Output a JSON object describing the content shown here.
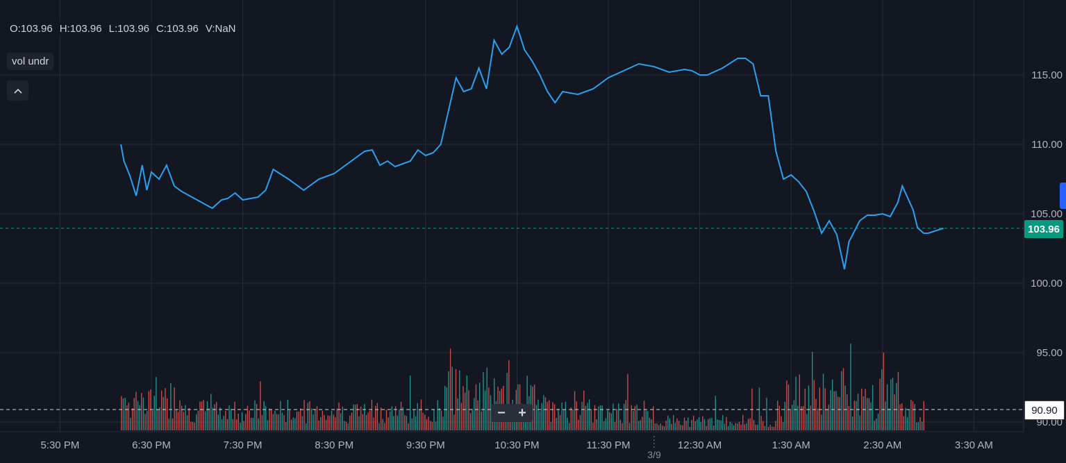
{
  "legend": {
    "open": "O:103.96",
    "high": "H:103.96",
    "low": "L:103.96",
    "close": "C:103.96",
    "volume": "V:NaN"
  },
  "indicator_label": "vol undr",
  "zoom": {
    "minus": "−",
    "plus": "+"
  },
  "last_price_label": "103.96",
  "volume_line_label": "90.90",
  "date_marker": "3/9",
  "colors": {
    "line": "#2aa1f0",
    "up": "#26a69a",
    "down": "#ef5350",
    "last_price": "#089981",
    "grid": "#2a2e39",
    "background": "#131722"
  },
  "chart_data": {
    "type": "line",
    "ylim": [
      90,
      120
    ],
    "y_ticks": [
      "115.00",
      "110.00",
      "105.00",
      "100.00",
      "95.00",
      "90.00"
    ],
    "x_ticks": [
      "5:30 PM",
      "6:30 PM",
      "7:30 PM",
      "8:30 PM",
      "9:30 PM",
      "10:30 PM",
      "11:30 PM",
      "12:30 AM",
      "1:30 AM",
      "2:30 AM",
      "3:30 AM"
    ],
    "x_tick_minutes": [
      -60,
      0,
      60,
      120,
      180,
      240,
      300,
      360,
      420,
      480,
      540
    ],
    "day_break_minutes": 330,
    "series": [
      {
        "x": [
          -20,
          -18,
          -14,
          -10,
          -6,
          -3,
          0,
          5,
          10,
          15,
          20,
          30,
          40,
          46,
          50,
          55,
          60,
          70,
          75,
          80,
          90,
          100,
          110,
          120,
          130,
          140,
          145,
          150,
          155,
          160,
          170,
          175,
          180,
          185,
          190,
          200,
          205,
          210,
          215,
          220,
          225,
          230,
          235,
          240,
          245,
          250,
          255,
          260,
          265,
          270,
          280,
          290,
          300,
          310,
          320,
          330,
          340,
          350,
          355,
          360,
          365,
          375,
          385,
          390,
          395,
          400,
          405,
          410,
          415,
          420,
          425,
          430,
          435,
          440,
          445,
          450,
          455,
          458,
          460,
          465,
          470,
          475,
          480,
          485,
          490,
          493,
          500,
          503,
          507,
          510,
          520
        ],
        "y": [
          110.0,
          108.8,
          107.7,
          106.3,
          108.5,
          106.7,
          108.0,
          107.5,
          108.5,
          107.0,
          106.6,
          106.0,
          105.4,
          106.0,
          106.1,
          106.5,
          106.0,
          106.2,
          106.7,
          108.2,
          107.5,
          106.7,
          107.5,
          107.9,
          108.7,
          109.5,
          109.6,
          108.5,
          108.8,
          108.4,
          108.8,
          109.6,
          109.2,
          109.4,
          110.0,
          114.8,
          113.8,
          114.0,
          115.5,
          114.0,
          117.5,
          116.5,
          117.0,
          118.5,
          116.8,
          116.0,
          115.0,
          113.8,
          113.0,
          113.8,
          113.6,
          114.0,
          114.8,
          115.3,
          115.8,
          115.6,
          115.2,
          115.4,
          115.3,
          115.0,
          115.0,
          115.5,
          116.2,
          116.2,
          115.8,
          113.5,
          113.5,
          109.5,
          107.5,
          107.8,
          107.3,
          106.6,
          105.2,
          103.6,
          104.5,
          103.5,
          101.0,
          103.0,
          103.4,
          104.5,
          104.9,
          104.9,
          105.0,
          104.8,
          105.8,
          107.0,
          105.3,
          104.0,
          103.6,
          103.6,
          103.96
        ]
      }
    ],
    "volume_line": 90.9
  }
}
